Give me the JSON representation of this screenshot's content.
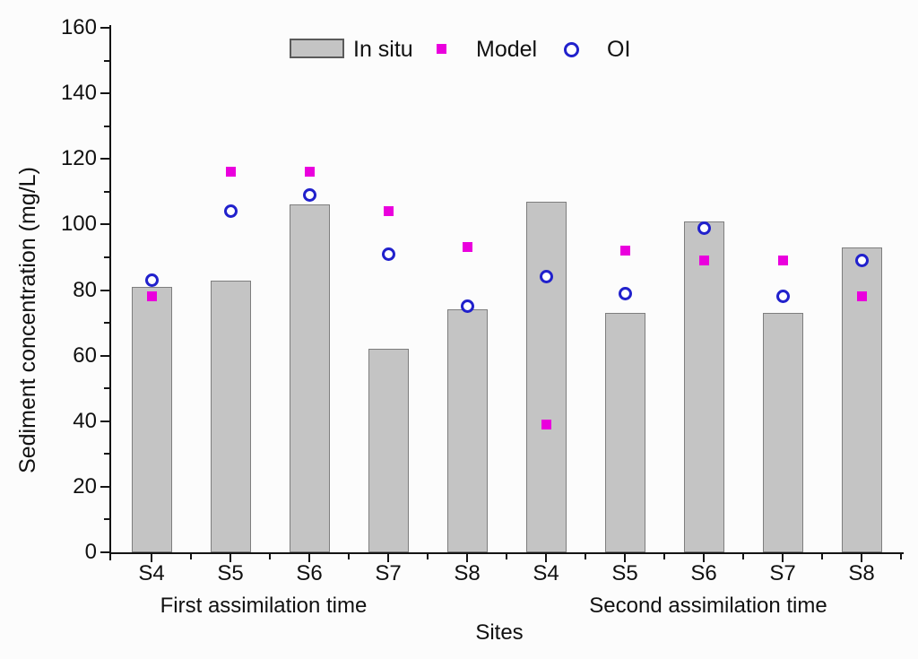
{
  "chart_data": {
    "type": "bar",
    "title": "",
    "ylabel": "Sediment concentration (mg/L)",
    "xlabel": "Sites",
    "ylim": [
      0,
      160
    ],
    "y_major_tick_step": 20,
    "y_minor_tick_step": 10,
    "grid": false,
    "legend_position": "top-center",
    "legend": [
      "In situ",
      "Model",
      "OI"
    ],
    "categories": [
      "S4",
      "S5",
      "S6",
      "S7",
      "S8",
      "S4",
      "S5",
      "S6",
      "S7",
      "S8"
    ],
    "group_labels": [
      "First assimilation time",
      "Second assimilation time"
    ],
    "series": [
      {
        "name": "In situ",
        "type": "bar",
        "marker": "rect",
        "color": "#c4c4c4",
        "values": [
          81,
          83,
          106,
          62,
          74,
          107,
          73,
          101,
          73,
          93
        ]
      },
      {
        "name": "Model",
        "type": "scatter",
        "marker": "filled-square",
        "color": "#ea00dd",
        "values": [
          78,
          116,
          116,
          104,
          93,
          39,
          92,
          89,
          89,
          78
        ]
      },
      {
        "name": "OI",
        "type": "scatter",
        "marker": "open-circle",
        "color": "#2121cc",
        "values": [
          83,
          104,
          109,
          91,
          75,
          84,
          79,
          99,
          78,
          89
        ]
      }
    ]
  }
}
